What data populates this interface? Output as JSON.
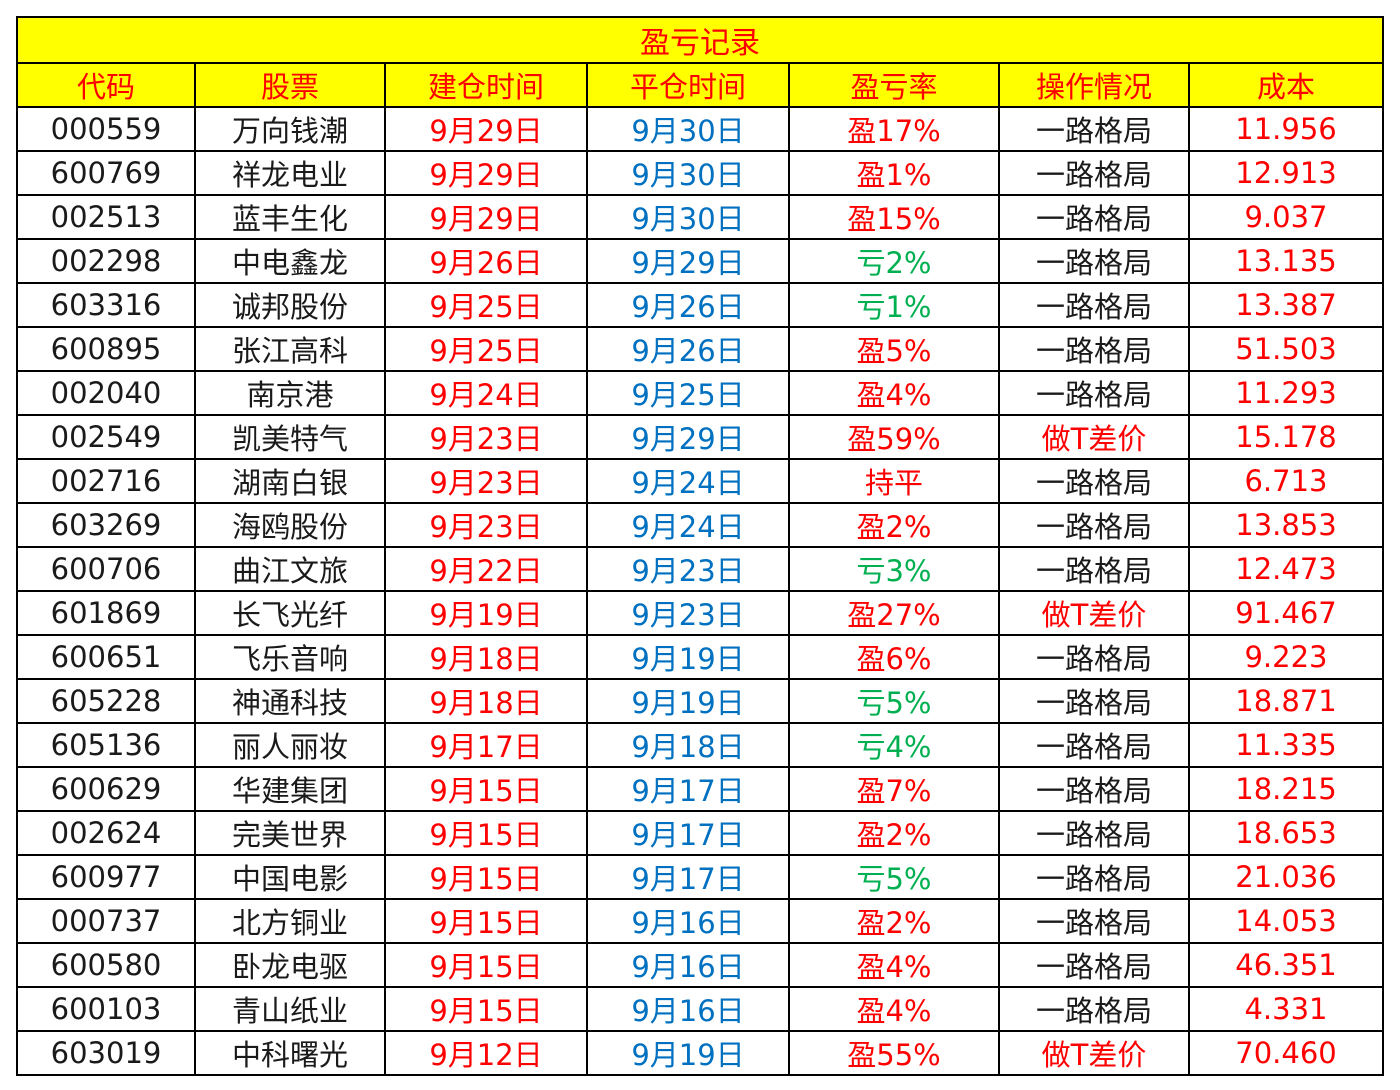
{
  "title": "盈亏记录",
  "headers": [
    "代码",
    "股票",
    "建仓时间",
    "平仓时间",
    "盈亏率",
    "操作情况",
    "成本"
  ],
  "colors": {
    "header_bg": "#ffff00",
    "header_text": "#ff0000",
    "open_date": "#ff0000",
    "close_date": "#0070c0",
    "profit": "#ff0000",
    "loss": "#00b050",
    "cost": "#ff0000"
  },
  "rows": [
    {
      "code": "000559",
      "name": "万向钱潮",
      "open": "9月29日",
      "close": "9月30日",
      "rate": "盈17%",
      "rate_type": "profit",
      "action": "一路格局",
      "cost": "11.956"
    },
    {
      "code": "600769",
      "name": "祥龙电业",
      "open": "9月29日",
      "close": "9月30日",
      "rate": "盈1%",
      "rate_type": "profit",
      "action": "一路格局",
      "cost": "12.913"
    },
    {
      "code": "002513",
      "name": "蓝丰生化",
      "open": "9月29日",
      "close": "9月30日",
      "rate": "盈15%",
      "rate_type": "profit",
      "action": "一路格局",
      "cost": "9.037"
    },
    {
      "code": "002298",
      "name": "中电鑫龙",
      "open": "9月26日",
      "close": "9月29日",
      "rate": "亏2%",
      "rate_type": "loss",
      "action": "一路格局",
      "cost": "13.135"
    },
    {
      "code": "603316",
      "name": "诚邦股份",
      "open": "9月25日",
      "close": "9月26日",
      "rate": "亏1%",
      "rate_type": "loss",
      "action": "一路格局",
      "cost": "13.387"
    },
    {
      "code": "600895",
      "name": "张江高科",
      "open": "9月25日",
      "close": "9月26日",
      "rate": "盈5%",
      "rate_type": "profit",
      "action": "一路格局",
      "cost": "51.503"
    },
    {
      "code": "002040",
      "name": "南京港",
      "open": "9月24日",
      "close": "9月25日",
      "rate": "盈4%",
      "rate_type": "profit",
      "action": "一路格局",
      "cost": "11.293"
    },
    {
      "code": "002549",
      "name": "凯美特气",
      "open": "9月23日",
      "close": "9月29日",
      "rate": "盈59%",
      "rate_type": "profit",
      "action": "做T差价",
      "cost": "15.178"
    },
    {
      "code": "002716",
      "name": "湖南白银",
      "open": "9月23日",
      "close": "9月24日",
      "rate": "持平",
      "rate_type": "flat",
      "action": "一路格局",
      "cost": "6.713"
    },
    {
      "code": "603269",
      "name": "海鸥股份",
      "open": "9月23日",
      "close": "9月24日",
      "rate": "盈2%",
      "rate_type": "profit",
      "action": "一路格局",
      "cost": "13.853"
    },
    {
      "code": "600706",
      "name": "曲江文旅",
      "open": "9月22日",
      "close": "9月23日",
      "rate": "亏3%",
      "rate_type": "loss",
      "action": "一路格局",
      "cost": "12.473"
    },
    {
      "code": "601869",
      "name": "长飞光纤",
      "open": "9月19日",
      "close": "9月23日",
      "rate": "盈27%",
      "rate_type": "profit",
      "action": "做T差价",
      "cost": "91.467"
    },
    {
      "code": "600651",
      "name": "飞乐音响",
      "open": "9月18日",
      "close": "9月19日",
      "rate": "盈6%",
      "rate_type": "profit",
      "action": "一路格局",
      "cost": "9.223"
    },
    {
      "code": "605228",
      "name": "神通科技",
      "open": "9月18日",
      "close": "9月19日",
      "rate": "亏5%",
      "rate_type": "loss",
      "action": "一路格局",
      "cost": "18.871"
    },
    {
      "code": "605136",
      "name": "丽人丽妆",
      "open": "9月17日",
      "close": "9月18日",
      "rate": "亏4%",
      "rate_type": "loss",
      "action": "一路格局",
      "cost": "11.335"
    },
    {
      "code": "600629",
      "name": "华建集团",
      "open": "9月15日",
      "close": "9月17日",
      "rate": "盈7%",
      "rate_type": "profit",
      "action": "一路格局",
      "cost": "18.215"
    },
    {
      "code": "002624",
      "name": "完美世界",
      "open": "9月15日",
      "close": "9月17日",
      "rate": "盈2%",
      "rate_type": "profit",
      "action": "一路格局",
      "cost": "18.653"
    },
    {
      "code": "600977",
      "name": "中国电影",
      "open": "9月15日",
      "close": "9月17日",
      "rate": "亏5%",
      "rate_type": "loss",
      "action": "一路格局",
      "cost": "21.036"
    },
    {
      "code": "000737",
      "name": "北方铜业",
      "open": "9月15日",
      "close": "9月16日",
      "rate": "盈2%",
      "rate_type": "profit",
      "action": "一路格局",
      "cost": "14.053"
    },
    {
      "code": "600580",
      "name": "卧龙电驱",
      "open": "9月15日",
      "close": "9月16日",
      "rate": "盈4%",
      "rate_type": "profit",
      "action": "一路格局",
      "cost": "46.351"
    },
    {
      "code": "600103",
      "name": "青山纸业",
      "open": "9月15日",
      "close": "9月16日",
      "rate": "盈4%",
      "rate_type": "profit",
      "action": "一路格局",
      "cost": "4.331"
    },
    {
      "code": "603019",
      "name": "中科曙光",
      "open": "9月12日",
      "close": "9月19日",
      "rate": "盈55%",
      "rate_type": "profit",
      "action": "做T差价",
      "cost": "70.460"
    }
  ]
}
